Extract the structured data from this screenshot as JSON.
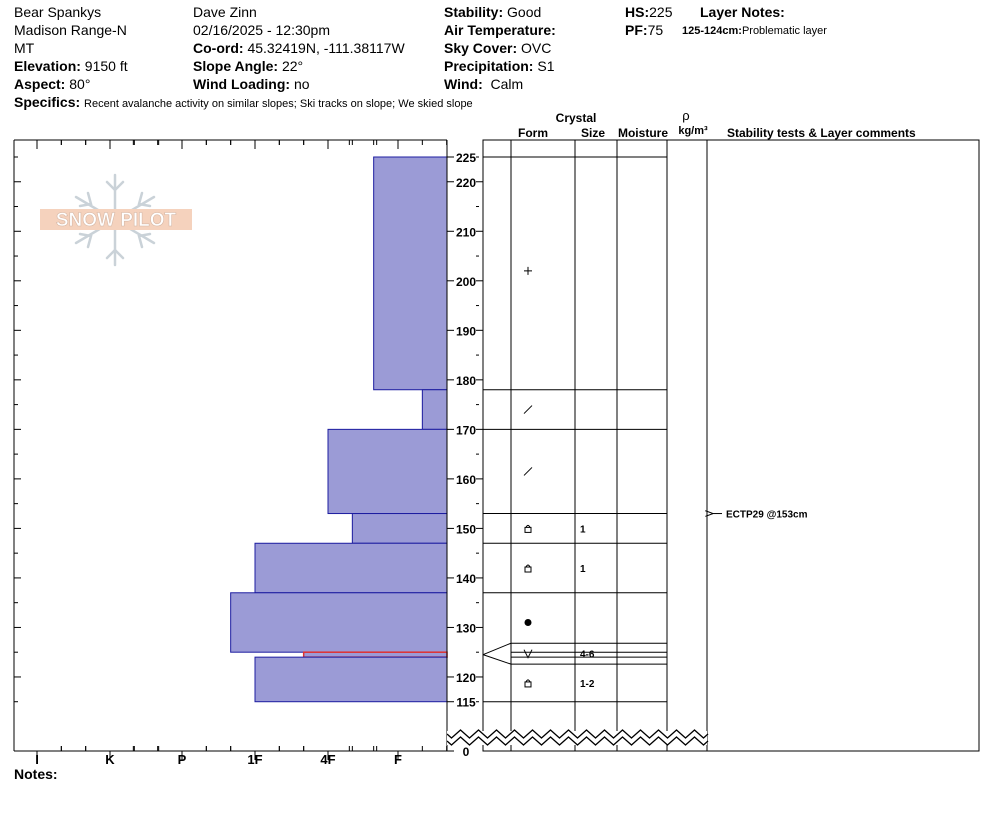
{
  "header": {
    "location": "Bear Spankys",
    "range": "Madison Range-N",
    "state": "MT",
    "elevation_label": "Elevation:",
    "elevation": "9150 ft",
    "aspect_label": "Aspect:",
    "aspect": "80°",
    "observer": "Dave Zinn",
    "datetime": "02/16/2025 - 12:30pm",
    "coord_label": "Co-ord:",
    "coord": "45.32419N, -111.38117W",
    "slope_label": "Slope Angle:",
    "slope": "22°",
    "wind_loading_label": "Wind Loading:",
    "wind_loading": "no",
    "stability_label": "Stability:",
    "stability": "Good",
    "air_temp_label": "Air Temperature:",
    "sky_label": "Sky Cover:",
    "sky": "OVC",
    "precip_label": "Precipitation:",
    "precip": "S1",
    "wind_label": "Wind:",
    "wind": "Calm",
    "hs_label": "HS:",
    "hs": "225",
    "pf_label": "PF:",
    "pf": "75",
    "layer_notes_label": "Layer Notes:",
    "layer_note_range": "125-124cm:",
    "layer_note_text": "Problematic layer",
    "specifics_label": "Specifics:",
    "specifics": "Recent avalanche activity on similar slopes; Ski tracks on slope; We skied slope"
  },
  "columns": {
    "crystal": "Crystal",
    "form": "Form",
    "size": "Size",
    "moisture": "Moisture",
    "rho": "ρ",
    "density_unit": "kg/m³",
    "stability_tests": "Stability tests & Layer comments"
  },
  "logo_text": "SNOW PILOT",
  "notes_label": "Notes:",
  "colors": {
    "layer_fill": "#9b9bd6",
    "layer_stroke": "#1c1ca0",
    "weak_layer": "#e03030"
  },
  "chart_data": {
    "type": "bar",
    "hardness_labels": [
      "I",
      "K",
      "P",
      "1F",
      "4F",
      "F"
    ],
    "depth_ticks": [
      225,
      220,
      210,
      200,
      190,
      180,
      170,
      160,
      150,
      140,
      130,
      120,
      115,
      0
    ],
    "layers": [
      {
        "top": 225,
        "bottom": 178,
        "hardness": "F+",
        "form": "precipitation-particles-icon",
        "size": ""
      },
      {
        "top": 178,
        "bottom": 170,
        "hardness": "F-",
        "form": "decomposing-fragments-icon",
        "size": ""
      },
      {
        "top": 170,
        "bottom": 153,
        "hardness": "4F",
        "form": "decomposing-fragments-icon",
        "size": ""
      },
      {
        "top": 153,
        "bottom": 147,
        "hardness": "4F-",
        "form": "faceted-crystals-icon",
        "size": "1"
      },
      {
        "top": 147,
        "bottom": 137,
        "hardness": "1F",
        "form": "faceted-crystals-icon",
        "size": "1"
      },
      {
        "top": 137,
        "bottom": 125,
        "hardness": "1F+",
        "form": "rounded-grains-icon",
        "size": ""
      },
      {
        "top": 125,
        "bottom": 124,
        "hardness": "4F+",
        "form": "depth-hoar-icon",
        "size": "4-6",
        "problematic": true
      },
      {
        "top": 124,
        "bottom": 115,
        "hardness": "1F",
        "form": "faceted-crystals-icon",
        "size": "1-2"
      }
    ],
    "stability_tests": [
      {
        "depth": 153,
        "label": "ECTP29 @153cm"
      }
    ]
  }
}
